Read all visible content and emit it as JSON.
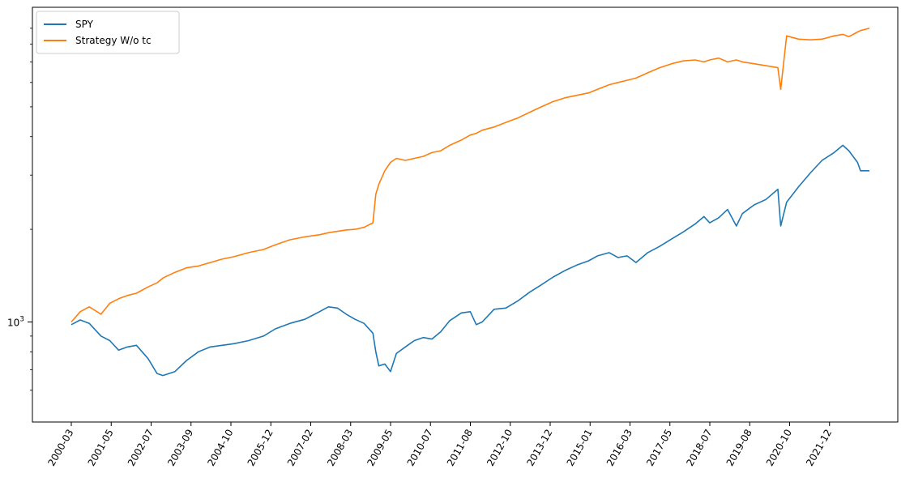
{
  "chart_data": {
    "type": "line",
    "title": "",
    "xlabel": "",
    "ylabel": "",
    "y_scale": "log",
    "y_tick": "10^3",
    "x_tick_labels": [
      "2000-03",
      "2001-05",
      "2002-07",
      "2003-09",
      "2004-10",
      "2005-12",
      "2007-02",
      "2008-03",
      "2009-05",
      "2010-07",
      "2011-08",
      "2012-10",
      "2013-12",
      "2015-01",
      "2016-03",
      "2017-05",
      "2018-07",
      "2019-08",
      "2020-10",
      "2021-12"
    ],
    "legend_position": "top-left",
    "grid": false,
    "x": [
      "2000-03",
      "2000-06",
      "2000-09",
      "2001-01",
      "2001-04",
      "2001-07",
      "2001-10",
      "2002-01",
      "2002-05",
      "2002-08",
      "2002-10",
      "2003-02",
      "2003-06",
      "2003-10",
      "2004-02",
      "2004-06",
      "2004-10",
      "2005-03",
      "2005-08",
      "2005-12",
      "2006-05",
      "2006-10",
      "2007-03",
      "2007-06",
      "2007-09",
      "2007-12",
      "2008-03",
      "2008-06",
      "2008-09",
      "2008-10",
      "2008-11",
      "2009-01",
      "2009-03",
      "2009-05",
      "2009-08",
      "2009-11",
      "2010-02",
      "2010-05",
      "2010-08",
      "2010-11",
      "2011-03",
      "2011-06",
      "2011-08",
      "2011-10",
      "2012-02",
      "2012-06",
      "2012-10",
      "2013-02",
      "2013-06",
      "2013-10",
      "2014-02",
      "2014-06",
      "2014-10",
      "2015-01",
      "2015-05",
      "2015-08",
      "2015-11",
      "2016-02",
      "2016-06",
      "2016-10",
      "2017-02",
      "2017-06",
      "2017-10",
      "2018-01",
      "2018-03",
      "2018-06",
      "2018-09",
      "2018-12",
      "2019-02",
      "2019-06",
      "2019-10",
      "2020-02",
      "2020-03",
      "2020-05",
      "2020-09",
      "2021-01",
      "2021-05",
      "2021-09",
      "2021-12",
      "2022-02",
      "2022-05",
      "2022-06",
      "2022-09"
    ],
    "series": [
      {
        "name": "SPY",
        "color": "#1f77b4",
        "values": [
          980,
          1015,
          990,
          900,
          870,
          810,
          830,
          840,
          760,
          680,
          670,
          690,
          750,
          800,
          830,
          840,
          850,
          870,
          900,
          950,
          990,
          1020,
          1080,
          1120,
          1110,
          1060,
          1020,
          990,
          920,
          800,
          720,
          730,
          690,
          790,
          830,
          870,
          890,
          880,
          930,
          1010,
          1070,
          1080,
          980,
          1000,
          1100,
          1110,
          1170,
          1250,
          1320,
          1400,
          1470,
          1530,
          1580,
          1640,
          1680,
          1620,
          1640,
          1560,
          1680,
          1760,
          1860,
          1960,
          2080,
          2200,
          2100,
          2180,
          2320,
          2050,
          2250,
          2400,
          2500,
          2700,
          2050,
          2450,
          2750,
          3050,
          3350,
          3550,
          3750,
          3600,
          3300,
          3100,
          3100
        ]
      },
      {
        "name": "Strategy W/o tc",
        "color": "#ff7f0e",
        "values": [
          1000,
          1080,
          1120,
          1060,
          1150,
          1190,
          1220,
          1240,
          1300,
          1340,
          1390,
          1450,
          1500,
          1520,
          1560,
          1600,
          1630,
          1680,
          1720,
          1780,
          1850,
          1890,
          1920,
          1950,
          1970,
          1990,
          2000,
          2030,
          2100,
          2600,
          2800,
          3100,
          3300,
          3400,
          3350,
          3400,
          3450,
          3550,
          3600,
          3750,
          3900,
          4050,
          4100,
          4200,
          4300,
          4450,
          4600,
          4800,
          5000,
          5200,
          5350,
          5450,
          5550,
          5700,
          5900,
          6000,
          6100,
          6200,
          6450,
          6700,
          6900,
          7050,
          7100,
          7000,
          7100,
          7200,
          7000,
          7100,
          7000,
          6900,
          6800,
          6700,
          5700,
          8500,
          8300,
          8250,
          8300,
          8500,
          8600,
          8450,
          8750,
          8850,
          9000
        ]
      }
    ]
  }
}
